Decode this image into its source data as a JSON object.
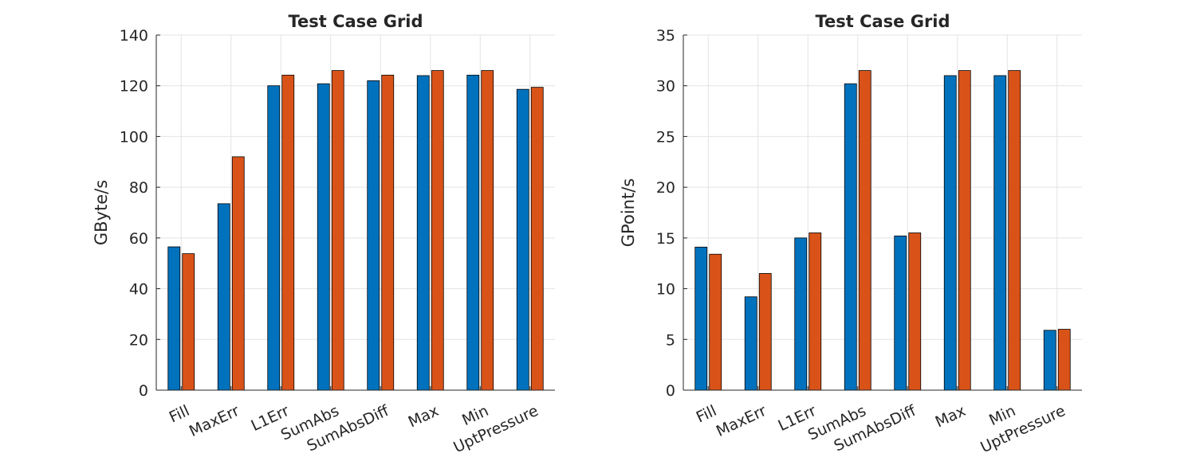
{
  "colors": {
    "series1": "#0072BD",
    "series2": "#D95319",
    "grid": "#e3e3e3",
    "axis": "#262626"
  },
  "chart_data": [
    {
      "type": "bar",
      "title": "Test Case Grid",
      "xlabel": "",
      "ylabel": "GByte/s",
      "categories": [
        "Fill",
        "MaxErr",
        "L1Err",
        "SumAbs",
        "SumAbsDiff",
        "Max",
        "Min",
        "UptPressure"
      ],
      "ylim": [
        0,
        140
      ],
      "yticks": [
        0,
        20,
        40,
        60,
        80,
        100,
        120,
        140
      ],
      "grid": true,
      "legend": "none",
      "series": [
        {
          "values": [
            56.5,
            73.5,
            120,
            120.8,
            122,
            124,
            124.2,
            118.6
          ]
        },
        {
          "values": [
            53.8,
            92,
            124.2,
            126,
            124.2,
            126,
            126,
            119.4
          ]
        }
      ]
    },
    {
      "type": "bar",
      "title": "Test Case Grid",
      "xlabel": "",
      "ylabel": "GPoint/s",
      "categories": [
        "Fill",
        "MaxErr",
        "L1Err",
        "SumAbs",
        "SumAbsDiff",
        "Max",
        "Min",
        "UptPressure"
      ],
      "ylim": [
        0,
        35
      ],
      "yticks": [
        0,
        5,
        10,
        15,
        20,
        25,
        30,
        35
      ],
      "grid": true,
      "legend": "none",
      "series": [
        {
          "values": [
            14.1,
            9.2,
            15,
            30.2,
            15.2,
            31,
            31,
            5.9
          ]
        },
        {
          "values": [
            13.4,
            11.5,
            15.5,
            31.5,
            15.5,
            31.5,
            31.5,
            6
          ]
        }
      ]
    }
  ]
}
